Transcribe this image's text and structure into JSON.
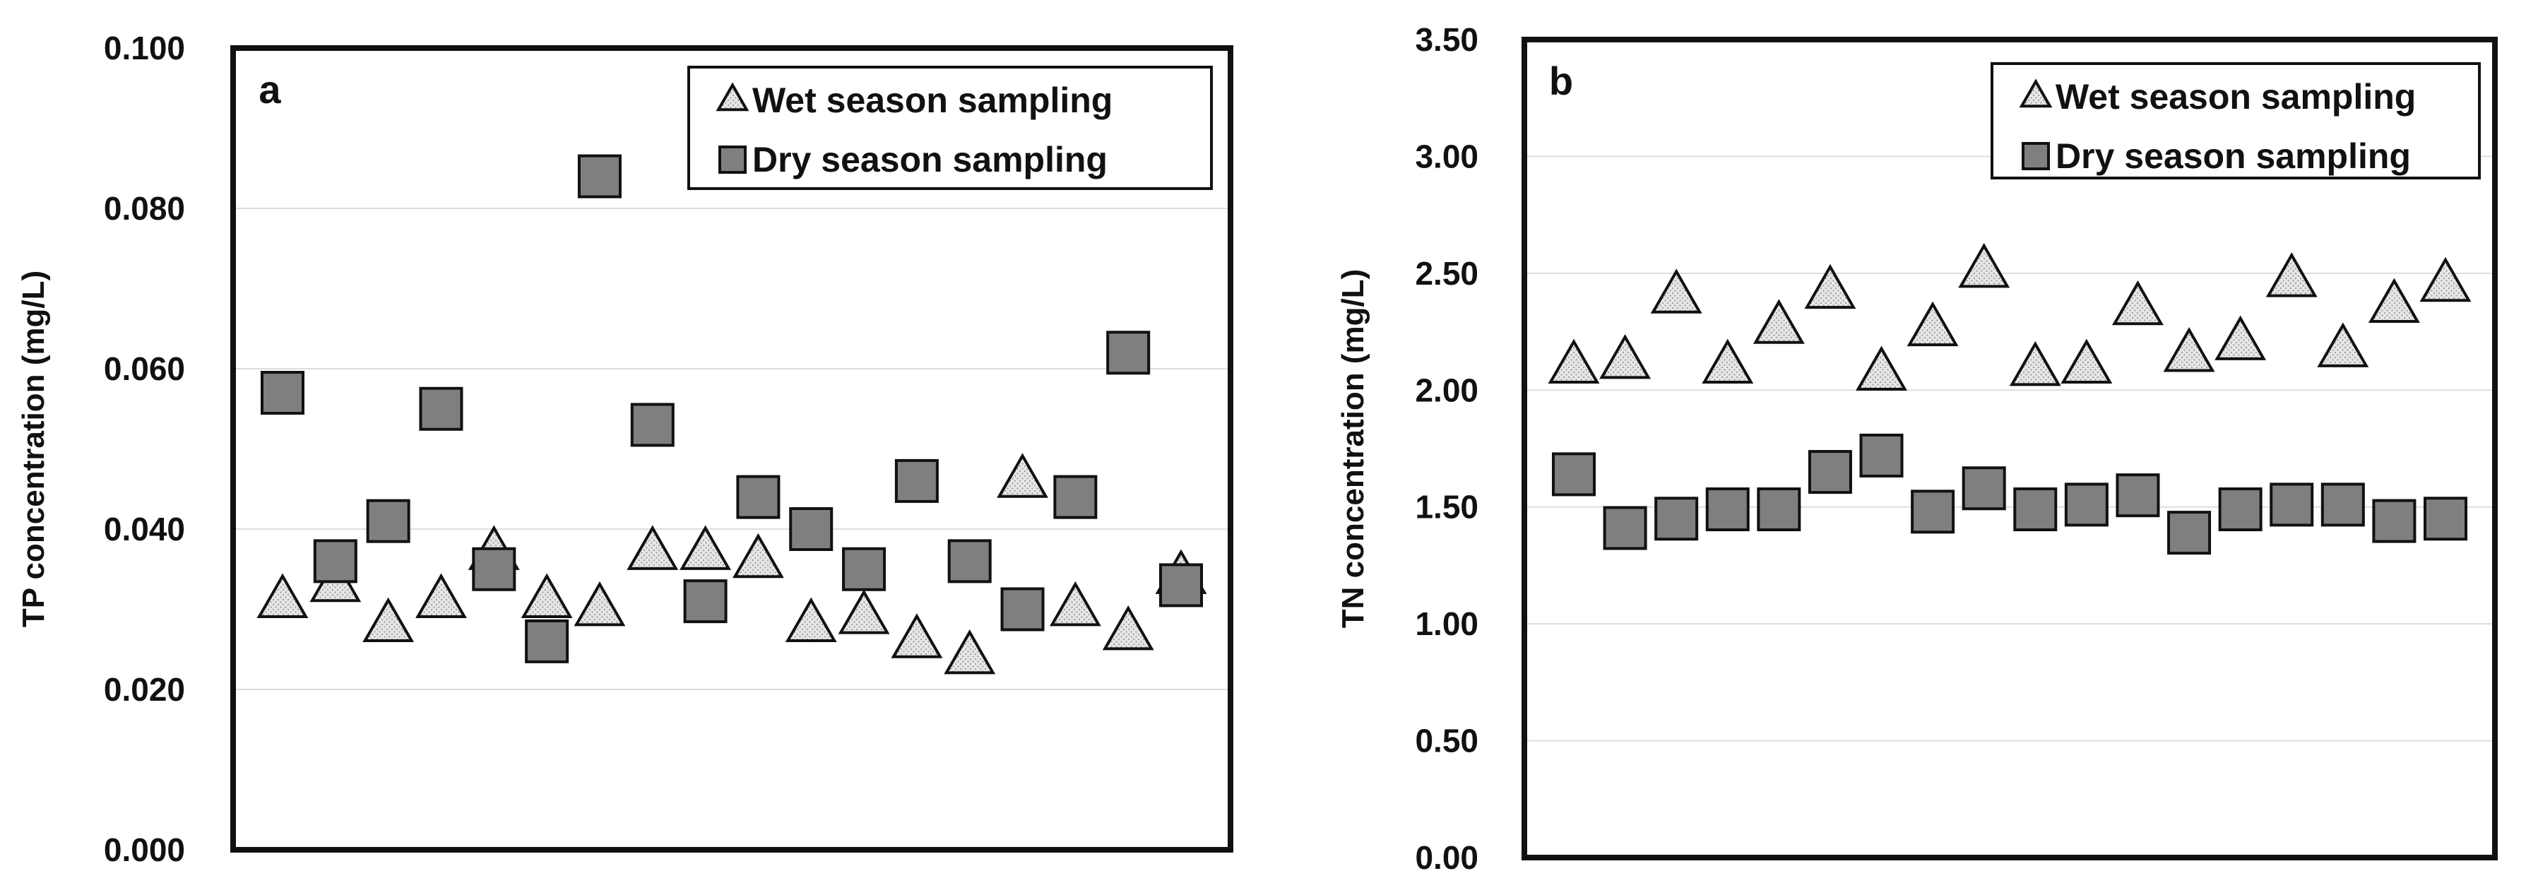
{
  "chart_data": [
    {
      "type": "scatter",
      "panel_label": "a",
      "title": "",
      "xlabel": "",
      "ylabel": "TP concentration (mg/L)",
      "ylim": [
        0,
        0.1
      ],
      "yticks": [
        "0.000",
        "0.020",
        "0.040",
        "0.060",
        "0.080",
        "0.100"
      ],
      "grid": true,
      "legend_position": "top-right",
      "series": [
        {
          "name": "Wet season sampling",
          "marker": "triangle",
          "x": [
            1,
            2,
            3,
            4,
            5,
            6,
            7,
            8,
            9,
            10,
            11,
            12,
            13,
            14,
            15,
            16,
            17,
            18
          ],
          "values": [
            0.031,
            0.033,
            0.028,
            0.031,
            0.037,
            0.031,
            0.03,
            0.037,
            0.037,
            0.036,
            0.028,
            0.029,
            0.026,
            0.024,
            0.046,
            0.03,
            0.027,
            0.034
          ]
        },
        {
          "name": "Dry season sampling",
          "marker": "square",
          "x": [
            1,
            2,
            3,
            4,
            5,
            6,
            7,
            8,
            9,
            10,
            11,
            12,
            13,
            14,
            15,
            16,
            17,
            18
          ],
          "values": [
            0.057,
            0.036,
            0.041,
            0.055,
            0.035,
            0.026,
            0.084,
            0.053,
            0.031,
            0.044,
            0.04,
            0.035,
            0.046,
            0.036,
            0.03,
            0.044,
            0.062,
            0.033
          ]
        }
      ]
    },
    {
      "type": "scatter",
      "panel_label": "b",
      "title": "",
      "xlabel": "",
      "ylabel": "TN concentration (mg/L)",
      "ylim": [
        0,
        3.5
      ],
      "yticks": [
        "0.00",
        "0.50",
        "1.00",
        "1.50",
        "2.00",
        "2.50",
        "3.00",
        "3.50"
      ],
      "grid": true,
      "legend_position": "top-right",
      "series": [
        {
          "name": "Wet season sampling",
          "marker": "triangle",
          "x": [
            1,
            2,
            3,
            4,
            5,
            6,
            7,
            8,
            9,
            10,
            11,
            12,
            13,
            14,
            15,
            16,
            17,
            18
          ],
          "values": [
            2.1,
            2.12,
            2.4,
            2.1,
            2.27,
            2.42,
            2.07,
            2.26,
            2.51,
            2.09,
            2.1,
            2.35,
            2.15,
            2.2,
            2.47,
            2.17,
            2.36,
            2.45
          ]
        },
        {
          "name": "Dry season sampling",
          "marker": "square",
          "x": [
            1,
            2,
            3,
            4,
            5,
            6,
            7,
            8,
            9,
            10,
            11,
            12,
            13,
            14,
            15,
            16,
            17,
            18
          ],
          "values": [
            1.64,
            1.41,
            1.45,
            1.49,
            1.49,
            1.65,
            1.72,
            1.48,
            1.58,
            1.49,
            1.51,
            1.55,
            1.39,
            1.49,
            1.51,
            1.51,
            1.44,
            1.45
          ]
        }
      ]
    }
  ]
}
